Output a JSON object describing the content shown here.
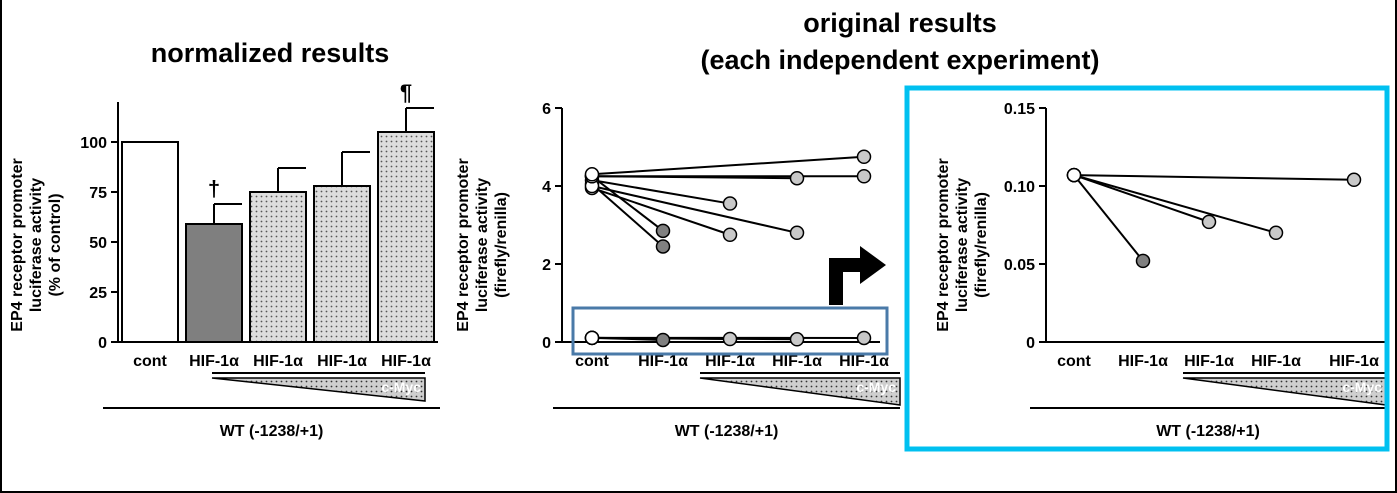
{
  "headings": {
    "normalized": "normalized results",
    "original_line1": "original results",
    "original_line2": "(each independent experiment)"
  },
  "colors": {
    "highlight_box": "#00C0F0",
    "zoom_box": "#4A7AA8",
    "bar_white": "#FFFFFF",
    "bar_dark": "#7F7F7F",
    "bar_dotted": "#DDDDDD",
    "point_dark": "#808080",
    "point_light": "#C8C8C8"
  },
  "chart_data": [
    {
      "type": "bar",
      "ylabel_lines": [
        "EP4 receptor promoter",
        "luciferase activity",
        "(% of control)"
      ],
      "categories": [
        "cont",
        "HIF-1α",
        "HIF-1α",
        "HIF-1α",
        "HIF-1α"
      ],
      "values": [
        100,
        59,
        75,
        78,
        105
      ],
      "errors": [
        0,
        10,
        12,
        17,
        12
      ],
      "significance": [
        "",
        "†",
        "",
        "",
        "¶"
      ],
      "fills": [
        "white",
        "dark",
        "dotted",
        "dotted",
        "dotted"
      ],
      "ylim": [
        0,
        120
      ],
      "yticks": [
        0,
        25,
        50,
        75,
        100
      ],
      "cmyc_label": "c-Myc",
      "group_label": "WT (-1238/+1)"
    },
    {
      "type": "scatter",
      "ylabel_lines": [
        "EP4 receptor promoter",
        "luciferase activity",
        "(firefly/renilla)"
      ],
      "categories": [
        "cont",
        "HIF-1α",
        "HIF-1α",
        "HIF-1α",
        "HIF-1α"
      ],
      "ylim": [
        0,
        6
      ],
      "yticks": [
        0,
        2,
        4,
        6
      ],
      "series": [
        {
          "points": [
            [
              1,
              4.25
            ],
            [
              2,
              2.85
            ]
          ]
        },
        {
          "points": [
            [
              1,
              4.05
            ],
            [
              2,
              2.45
            ]
          ]
        },
        {
          "points": [
            [
              1,
              4.15
            ],
            [
              3,
              3.55
            ]
          ]
        },
        {
          "points": [
            [
              1,
              3.95
            ],
            [
              3,
              2.75
            ]
          ]
        },
        {
          "points": [
            [
              1,
              4.0
            ],
            [
              4,
              2.8
            ]
          ]
        },
        {
          "points": [
            [
              1,
              4.25
            ],
            [
              4,
              4.2
            ]
          ]
        },
        {
          "points": [
            [
              1,
              4.25
            ],
            [
              5,
              4.25
            ]
          ]
        },
        {
          "points": [
            [
              1,
              4.3
            ],
            [
              5,
              4.75
            ]
          ]
        },
        {
          "points": [
            [
              1,
              0.107
            ],
            [
              2,
              0.052
            ]
          ]
        },
        {
          "points": [
            [
              1,
              0.107
            ],
            [
              3,
              0.077
            ]
          ]
        },
        {
          "points": [
            [
              1,
              0.107
            ],
            [
              4,
              0.07
            ]
          ]
        },
        {
          "points": [
            [
              1,
              0.107
            ],
            [
              5,
              0.104
            ]
          ]
        }
      ],
      "cmyc_label": "c-Myc",
      "group_label": "WT (-1238/+1)"
    },
    {
      "type": "scatter",
      "ylabel_lines": [
        "EP4 receptor promoter",
        "luciferase activity",
        "(firefly/renilla)"
      ],
      "categories": [
        "cont",
        "HIF-1α",
        "HIF-1α",
        "HIF-1α",
        "HIF-1α"
      ],
      "ylim": [
        0,
        0.15
      ],
      "yticks": [
        0,
        0.05,
        0.1,
        0.15
      ],
      "ytick_labels": [
        "0",
        "0.05",
        "0.10",
        "0.15"
      ],
      "series": [
        {
          "points": [
            [
              1,
              0.107
            ],
            [
              2,
              0.052
            ]
          ]
        },
        {
          "points": [
            [
              1,
              0.107
            ],
            [
              3,
              0.077
            ]
          ]
        },
        {
          "points": [
            [
              1,
              0.107
            ],
            [
              4,
              0.07
            ]
          ]
        },
        {
          "points": [
            [
              1,
              0.107
            ],
            [
              5,
              0.104
            ]
          ]
        }
      ],
      "cmyc_label": "c-Myc",
      "group_label": "WT (-1238/+1)"
    }
  ]
}
